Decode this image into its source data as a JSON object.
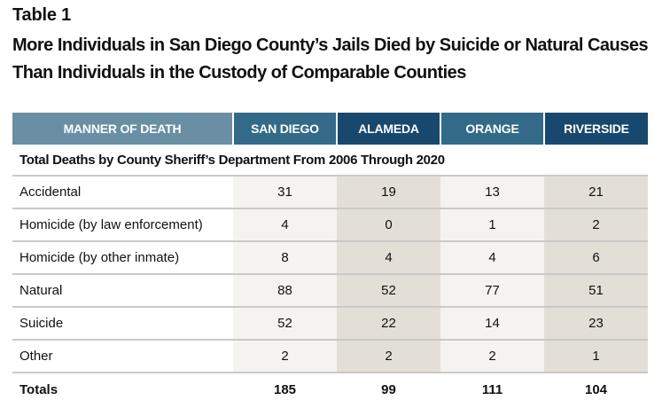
{
  "table_label": "Table 1",
  "title": "More Individuals in San Diego County’s Jails Died by Suicide or Natural Causes Than Individuals in the Custody of Comparable Counties",
  "table": {
    "headers": [
      "MANNER OF DEATH",
      "SAN DIEGO",
      "ALAMEDA",
      "ORANGE",
      "RIVERSIDE"
    ],
    "subtitle": "Total Deaths by County Sheriff’s Department From 2006 Through 2020",
    "rows": [
      {
        "manner": "Accidental",
        "values": [
          "31",
          "19",
          "13",
          "21"
        ]
      },
      {
        "manner": "Homicide (by law enforcement)",
        "values": [
          "4",
          "0",
          "1",
          "2"
        ]
      },
      {
        "manner": "Homicide (by other inmate)",
        "values": [
          "8",
          "4",
          "4",
          "6"
        ]
      },
      {
        "manner": "Natural",
        "values": [
          "88",
          "52",
          "77",
          "51"
        ]
      },
      {
        "manner": "Suicide",
        "values": [
          "52",
          "22",
          "14",
          "23"
        ]
      },
      {
        "manner": "Other",
        "values": [
          "2",
          "2",
          "2",
          "1"
        ]
      }
    ],
    "totals": {
      "label": "Totals",
      "values": [
        "185",
        "99",
        "111",
        "104"
      ]
    }
  },
  "colors": {
    "header_manner": "#6a8fa5",
    "header_mid_blue": "#336a88",
    "header_dark_blue": "#18486e",
    "cell_light": "#f4f3f0",
    "cell_dark": "#e3dfd6"
  }
}
